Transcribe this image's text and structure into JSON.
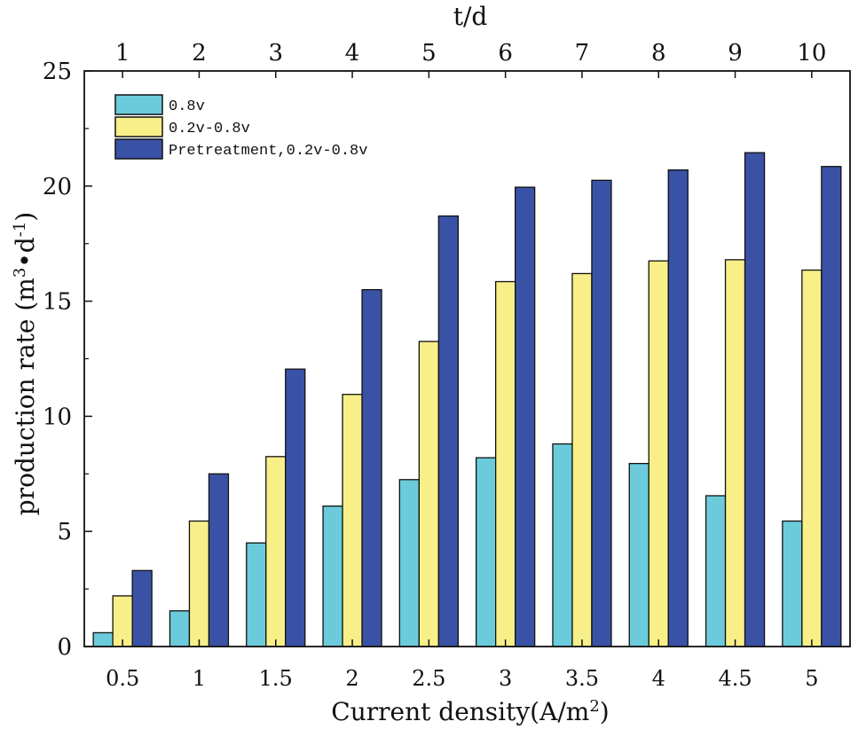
{
  "chart_data": {
    "type": "bar",
    "categories": [
      "0.5",
      "1",
      "1.5",
      "2",
      "2.5",
      "3",
      "3.5",
      "4",
      "4.5",
      "5"
    ],
    "top_categories": [
      "1",
      "2",
      "3",
      "4",
      "5",
      "6",
      "7",
      "8",
      "9",
      "10"
    ],
    "series": [
      {
        "name": "0.8v",
        "color": "#6ccbdb",
        "values": [
          0.6,
          1.55,
          4.5,
          6.1,
          7.25,
          8.2,
          8.8,
          7.95,
          6.55,
          5.45
        ]
      },
      {
        "name": "0.2v-0.8v",
        "color": "#f8ef88",
        "values": [
          2.2,
          5.45,
          8.25,
          10.95,
          13.25,
          15.85,
          16.2,
          16.75,
          16.8,
          16.35
        ]
      },
      {
        "name": "Pretreatment,0.2v-0.8v",
        "color": "#3a52a6",
        "values": [
          3.3,
          7.5,
          12.05,
          15.5,
          18.7,
          19.95,
          20.25,
          20.7,
          21.45,
          20.85
        ]
      }
    ],
    "xlabel": "Current density(A/m",
    "xlabel_sup": "2",
    "xlabel_end": ")",
    "top_xlabel": "t/d",
    "ylabel": "production rate (m",
    "ylabel_sup1": "3",
    "ylabel_mid": "•d",
    "ylabel_sup2": "-1",
    "ylabel_end": ")",
    "ylim": [
      0,
      25
    ],
    "yticks": [
      "0",
      "5",
      "10",
      "15",
      "20",
      "25"
    ],
    "legend_position": "top-left"
  }
}
